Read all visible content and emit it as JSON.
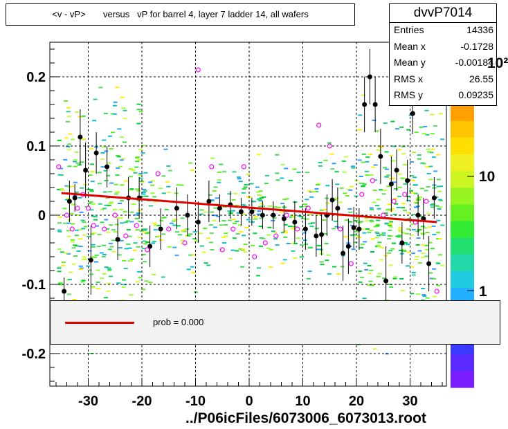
{
  "title": "<v - vP>       versus   vP for barrel 4, layer 7 ladder 14, all wafers",
  "footer": "../P06icFiles/6073006_6073013.root",
  "stats": {
    "name": "dvvP7014",
    "rows": [
      {
        "label": "Entries",
        "value": "14336"
      },
      {
        "label": "Mean x",
        "value": "-0.1728"
      },
      {
        "label": "Mean y",
        "value": "-0.00184"
      },
      {
        "label": "RMS x",
        "value": "26.55"
      },
      {
        "label": "RMS y",
        "value": "0.09235"
      }
    ]
  },
  "legend": {
    "text": "prob = 0.000",
    "color": "#e00000"
  },
  "palette": {
    "labels": [
      "10",
      "1"
    ],
    "exponent_tick": "10²"
  },
  "colors": {
    "fit_line": "#e00000",
    "profile_points": "#000000",
    "marker_outline": "#ff00ff"
  },
  "chart_data": {
    "type": "scatter",
    "title": "<v - vP>       versus   vP for barrel 4, layer 7 ladder 14, all wafers",
    "xlabel": "",
    "ylabel": "",
    "xlim": [
      -37,
      37
    ],
    "ylim": [
      -0.25,
      0.25
    ],
    "x_ticks": [
      -30,
      -20,
      -10,
      0,
      10,
      20,
      30
    ],
    "x_tick_labels": [
      "-30",
      "-20",
      "-10",
      "0",
      "10",
      "20",
      "30"
    ],
    "y_ticks": [
      0.2,
      0.1,
      0,
      -0.1,
      -0.2
    ],
    "y_tick_labels": [
      "0.2",
      "0.1",
      "0",
      "-0.1",
      "-0.2"
    ],
    "grid": true,
    "fit_line": {
      "x": [
        -35,
        35
      ],
      "y": [
        0.032,
        -0.01
      ]
    },
    "profile_points": {
      "x": [
        -34.5,
        -33.5,
        -32.5,
        -31.5,
        -30.5,
        -29.5,
        -28.5,
        -26.5,
        -24.5,
        -22.5,
        -20.5,
        -18.5,
        -16.5,
        -13.5,
        -11.5,
        -9.5,
        -7.5,
        -5.5,
        -3.5,
        -1.5,
        0.5,
        2.5,
        4.5,
        6.5,
        8.5,
        10.5,
        12.5,
        13.5,
        14.5,
        15.5,
        16.5,
        17.5,
        18.5,
        19.5,
        20.5,
        21.5,
        22.5,
        23.5,
        24.5,
        25.5,
        26.5,
        27.5,
        28.5,
        29.5,
        30.5,
        31.5,
        32.5,
        33.5,
        34.5
      ],
      "y": [
        -0.11,
        0.02,
        0.025,
        0.113,
        0.065,
        -0.065,
        0.09,
        0.07,
        -0.035,
        0.025,
        0.025,
        -0.045,
        -0.02,
        0.01,
        0.0,
        -0.01,
        0.02,
        0.01,
        0.015,
        0.005,
        0.005,
        0.0,
        0.0,
        -0.005,
        -0.01,
        -0.02,
        -0.03,
        -0.028,
        0.0,
        0.022,
        0.01,
        -0.055,
        -0.045,
        -0.018,
        -0.02,
        0.16,
        0.2,
        0.16,
        0.085,
        -0.095,
        0.045,
        0.065,
        -0.04,
        0.05,
        0.147,
        0.0,
        -0.005,
        -0.07,
        0.025
      ],
      "err": [
        0.02,
        0.03,
        0.02,
        0.04,
        0.04,
        0.05,
        0.03,
        0.03,
        0.03,
        0.03,
        0.03,
        0.03,
        0.03,
        0.03,
        0.03,
        0.03,
        0.03,
        0.02,
        0.02,
        0.02,
        0.02,
        0.02,
        0.02,
        0.02,
        0.03,
        0.03,
        0.03,
        0.03,
        0.03,
        0.03,
        0.03,
        0.04,
        0.04,
        0.03,
        0.03,
        0.04,
        0.04,
        0.04,
        0.04,
        0.05,
        0.04,
        0.03,
        0.03,
        0.03,
        0.03,
        0.03,
        0.03,
        0.04,
        0.03
      ]
    },
    "open_markers": {
      "x": [
        -35.5,
        -34,
        -33,
        -32,
        -31,
        -30,
        -29,
        -27,
        -25,
        -23,
        -21,
        -19,
        -17,
        -15,
        -12,
        -9.5,
        -7,
        -5,
        -3,
        -1,
        1,
        3,
        5,
        7,
        9,
        11,
        13,
        15,
        17,
        19,
        21,
        23,
        25,
        27,
        29,
        31,
        33,
        35
      ],
      "y": [
        0.07,
        0.0,
        -0.02,
        0.01,
        0.03,
        0.01,
        -0.015,
        -0.02,
        0.0,
        -0.03,
        -0.015,
        -0.05,
        0.06,
        -0.02,
        -0.04,
        0.21,
        0.07,
        -0.05,
        -0.02,
        0.07,
        -0.06,
        -0.04,
        -0.03,
        0.0,
        -0.02,
        0.01,
        0.13,
        0.1,
        -0.02,
        -0.07,
        0.03,
        0.05,
        0.0,
        0.02,
        0.03,
        -0.01,
        0.02,
        -0.11
      ]
    }
  }
}
